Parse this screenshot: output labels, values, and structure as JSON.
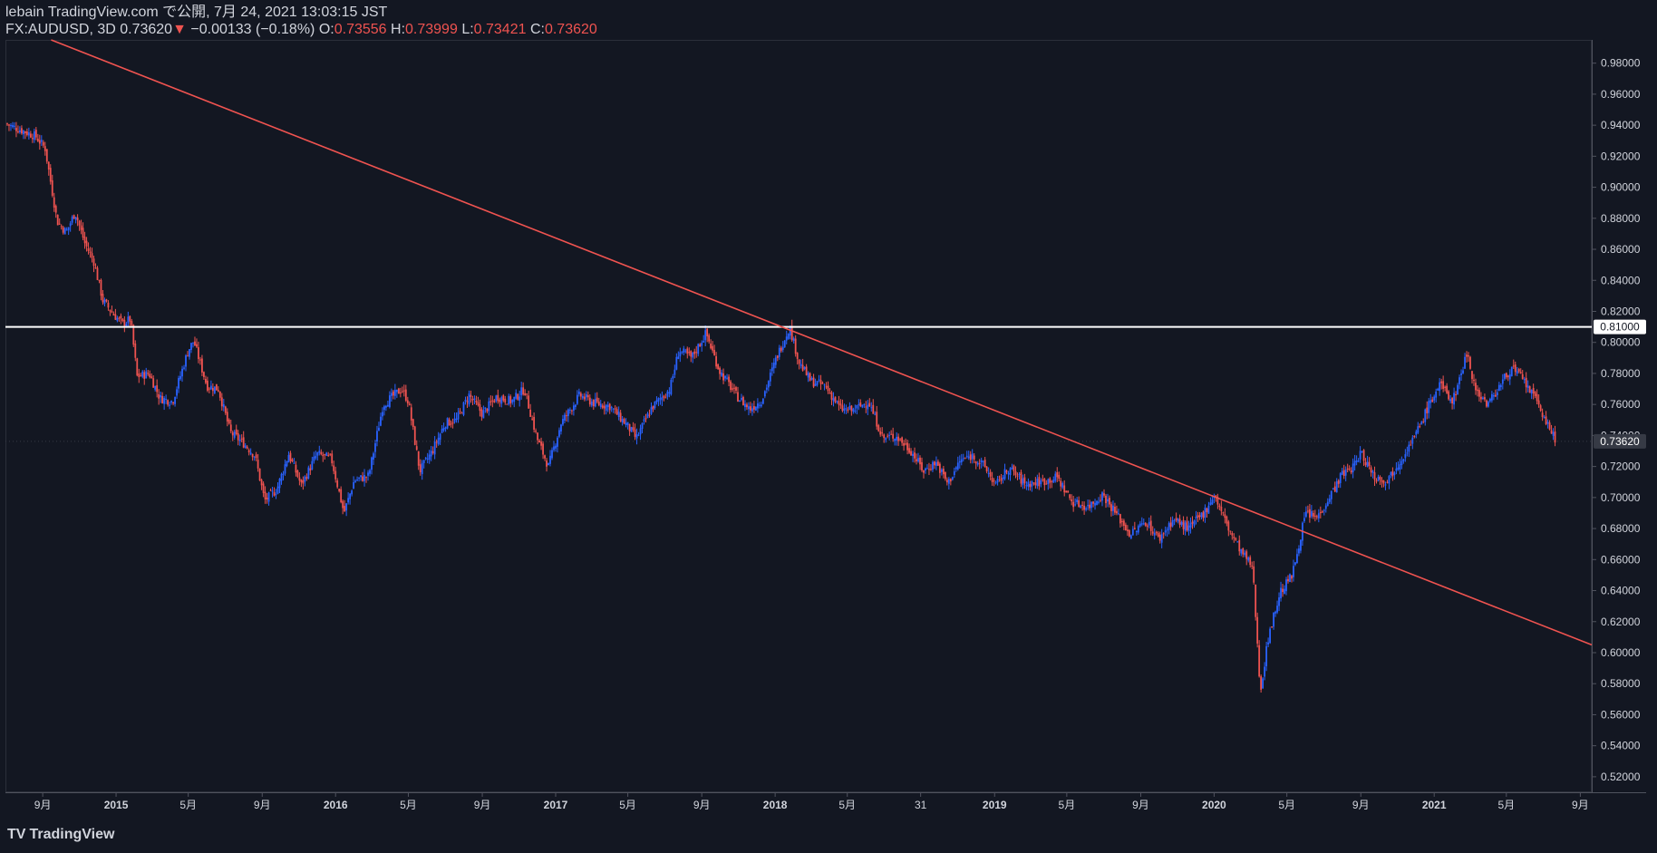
{
  "header": {
    "publisher": "lebain TradingView.com で公開, 7月 24, 2021 13:03:15 JST",
    "symbol": "FX:AUDUSD, 3D 0.73620",
    "change_arrow": "▼",
    "change": "−0.00133 (−0.18%)",
    "o_label": "O:",
    "o_value": "0.73556",
    "h_label": "H:",
    "h_value": "0.73999",
    "l_label": "L:",
    "l_value": "0.73421",
    "c_label": "C:",
    "c_value": "0.73620"
  },
  "footer": {
    "logo_text": "TradingView",
    "logo_icon": "tradingview-logo-icon"
  },
  "colors": {
    "background": "#131722",
    "up": "#2962ff",
    "down": "#ef5350",
    "trendline": "#ef5350",
    "hline": "#ffffff",
    "axis_text": "#d1d4dc",
    "last_price_bg": "#363a45"
  },
  "chart_data": {
    "type": "candlestick",
    "symbol": "FX:AUDUSD",
    "interval": "3D",
    "x_range": [
      "2014-07-01",
      "2021-09-20"
    ],
    "ylim": [
      0.51,
      0.995
    ],
    "y_ticks": [
      "0.98000",
      "0.96000",
      "0.94000",
      "0.92000",
      "0.90000",
      "0.88000",
      "0.86000",
      "0.84000",
      "0.82000",
      "0.80000",
      "0.78000",
      "0.76000",
      "0.74000",
      "0.72000",
      "0.70000",
      "0.68000",
      "0.66000",
      "0.64000",
      "0.62000",
      "0.60000",
      "0.58000",
      "0.56000",
      "0.54000",
      "0.52000"
    ],
    "x_ticks": [
      {
        "label": "9月",
        "date": "2014-09-01"
      },
      {
        "label": "2015",
        "date": "2015-01-01"
      },
      {
        "label": "5月",
        "date": "2015-05-01"
      },
      {
        "label": "9月",
        "date": "2015-09-01"
      },
      {
        "label": "2016",
        "date": "2016-01-01"
      },
      {
        "label": "5月",
        "date": "2016-05-01"
      },
      {
        "label": "9月",
        "date": "2016-09-01"
      },
      {
        "label": "2017",
        "date": "2017-01-01"
      },
      {
        "label": "5月",
        "date": "2017-05-01"
      },
      {
        "label": "9月",
        "date": "2017-09-01"
      },
      {
        "label": "2018",
        "date": "2018-01-01"
      },
      {
        "label": "5月",
        "date": "2018-05-01"
      },
      {
        "label": "31",
        "date": "2018-08-31"
      },
      {
        "label": "2019",
        "date": "2019-01-01"
      },
      {
        "label": "5月",
        "date": "2019-05-01"
      },
      {
        "label": "9月",
        "date": "2019-09-01"
      },
      {
        "label": "2020",
        "date": "2020-01-01"
      },
      {
        "label": "5月",
        "date": "2020-05-01"
      },
      {
        "label": "9月",
        "date": "2020-09-01"
      },
      {
        "label": "2021",
        "date": "2021-01-01"
      },
      {
        "label": "5月",
        "date": "2021-05-01"
      },
      {
        "label": "9月",
        "date": "2021-09-01"
      }
    ],
    "close_path": [
      [
        "2014-07-01",
        0.941
      ],
      [
        "2014-08-20",
        0.933
      ],
      [
        "2014-09-05",
        0.925
      ],
      [
        "2014-09-25",
        0.878
      ],
      [
        "2014-10-10",
        0.871
      ],
      [
        "2014-10-25",
        0.884
      ],
      [
        "2014-11-10",
        0.864
      ],
      [
        "2014-11-25",
        0.852
      ],
      [
        "2014-12-10",
        0.827
      ],
      [
        "2014-12-28",
        0.818
      ],
      [
        "2015-01-12",
        0.812
      ],
      [
        "2015-01-25",
        0.815
      ],
      [
        "2015-02-05",
        0.778
      ],
      [
        "2015-02-25",
        0.78
      ],
      [
        "2015-03-15",
        0.764
      ],
      [
        "2015-04-05",
        0.762
      ],
      [
        "2015-05-01",
        0.795
      ],
      [
        "2015-05-10",
        0.801
      ],
      [
        "2015-06-01",
        0.772
      ],
      [
        "2015-06-20",
        0.77
      ],
      [
        "2015-07-10",
        0.742
      ],
      [
        "2015-08-01",
        0.735
      ],
      [
        "2015-08-20",
        0.727
      ],
      [
        "2015-09-05",
        0.698
      ],
      [
        "2015-09-25",
        0.705
      ],
      [
        "2015-10-15",
        0.728
      ],
      [
        "2015-11-05",
        0.708
      ],
      [
        "2015-12-01",
        0.728
      ],
      [
        "2015-12-25",
        0.725
      ],
      [
        "2016-01-15",
        0.69
      ],
      [
        "2016-02-01",
        0.711
      ],
      [
        "2016-02-25",
        0.714
      ],
      [
        "2016-03-20",
        0.76
      ],
      [
        "2016-04-20",
        0.77
      ],
      [
        "2016-05-01",
        0.762
      ],
      [
        "2016-05-20",
        0.717
      ],
      [
        "2016-06-10",
        0.73
      ],
      [
        "2016-07-01",
        0.748
      ],
      [
        "2016-07-20",
        0.75
      ],
      [
        "2016-08-10",
        0.766
      ],
      [
        "2016-09-01",
        0.754
      ],
      [
        "2016-09-25",
        0.765
      ],
      [
        "2016-10-20",
        0.762
      ],
      [
        "2016-11-10",
        0.77
      ],
      [
        "2016-12-01",
        0.738
      ],
      [
        "2016-12-20",
        0.72
      ],
      [
        "2017-01-10",
        0.748
      ],
      [
        "2017-02-10",
        0.766
      ],
      [
        "2017-03-05",
        0.761
      ],
      [
        "2017-04-01",
        0.759
      ],
      [
        "2017-05-01",
        0.746
      ],
      [
        "2017-05-15",
        0.738
      ],
      [
        "2017-06-10",
        0.758
      ],
      [
        "2017-07-10",
        0.77
      ],
      [
        "2017-07-25",
        0.795
      ],
      [
        "2017-08-15",
        0.79
      ],
      [
        "2017-09-08",
        0.806
      ],
      [
        "2017-09-30",
        0.782
      ],
      [
        "2017-10-30",
        0.765
      ],
      [
        "2017-11-20",
        0.757
      ],
      [
        "2017-12-10",
        0.763
      ],
      [
        "2018-01-05",
        0.792
      ],
      [
        "2018-01-25",
        0.81
      ],
      [
        "2018-02-10",
        0.787
      ],
      [
        "2018-03-01",
        0.775
      ],
      [
        "2018-03-25",
        0.772
      ],
      [
        "2018-04-20",
        0.757
      ],
      [
        "2018-05-10",
        0.756
      ],
      [
        "2018-06-05",
        0.762
      ],
      [
        "2018-06-30",
        0.738
      ],
      [
        "2018-07-20",
        0.74
      ],
      [
        "2018-08-15",
        0.73
      ],
      [
        "2018-09-05",
        0.717
      ],
      [
        "2018-09-25",
        0.723
      ],
      [
        "2018-10-15",
        0.709
      ],
      [
        "2018-11-05",
        0.724
      ],
      [
        "2018-11-25",
        0.727
      ],
      [
        "2018-12-15",
        0.72
      ],
      [
        "2019-01-03",
        0.708
      ],
      [
        "2019-01-25",
        0.719
      ],
      [
        "2019-02-20",
        0.709
      ],
      [
        "2019-03-20",
        0.71
      ],
      [
        "2019-04-15",
        0.713
      ],
      [
        "2019-05-10",
        0.697
      ],
      [
        "2019-06-05",
        0.694
      ],
      [
        "2019-06-30",
        0.702
      ],
      [
        "2019-07-25",
        0.688
      ],
      [
        "2019-08-15",
        0.676
      ],
      [
        "2019-09-10",
        0.685
      ],
      [
        "2019-10-01",
        0.673
      ],
      [
        "2019-10-25",
        0.686
      ],
      [
        "2019-11-20",
        0.68
      ],
      [
        "2019-12-15",
        0.69
      ],
      [
        "2020-01-01",
        0.702
      ],
      [
        "2020-01-25",
        0.68
      ],
      [
        "2020-02-15",
        0.665
      ],
      [
        "2020-03-05",
        0.655
      ],
      [
        "2020-03-18",
        0.575
      ],
      [
        "2020-04-01",
        0.612
      ],
      [
        "2020-04-20",
        0.639
      ],
      [
        "2020-05-10",
        0.65
      ],
      [
        "2020-06-01",
        0.69
      ],
      [
        "2020-06-20",
        0.687
      ],
      [
        "2020-07-10",
        0.7
      ],
      [
        "2020-08-01",
        0.715
      ],
      [
        "2020-08-20",
        0.72
      ],
      [
        "2020-09-01",
        0.729
      ],
      [
        "2020-09-25",
        0.713
      ],
      [
        "2020-10-15",
        0.711
      ],
      [
        "2020-11-10",
        0.727
      ],
      [
        "2020-12-01",
        0.74
      ],
      [
        "2020-12-20",
        0.757
      ],
      [
        "2021-01-10",
        0.773
      ],
      [
        "2021-02-01",
        0.762
      ],
      [
        "2021-02-25",
        0.794
      ],
      [
        "2021-03-10",
        0.77
      ],
      [
        "2021-03-31",
        0.76
      ],
      [
        "2021-04-25",
        0.775
      ],
      [
        "2021-05-10",
        0.784
      ],
      [
        "2021-06-01",
        0.774
      ],
      [
        "2021-06-25",
        0.759
      ],
      [
        "2021-07-10",
        0.745
      ],
      [
        "2021-07-23",
        0.7362
      ]
    ],
    "trendline": {
      "from": [
        "2014-09-15",
        0.995
      ],
      "to": [
        "2021-09-20",
        0.605
      ],
      "color": "#ef5350"
    },
    "horizontal_line": {
      "value": 0.81,
      "label": "0.81000",
      "color": "#ffffff"
    },
    "last_price": {
      "value": 0.7362,
      "label": "0.73620"
    }
  }
}
